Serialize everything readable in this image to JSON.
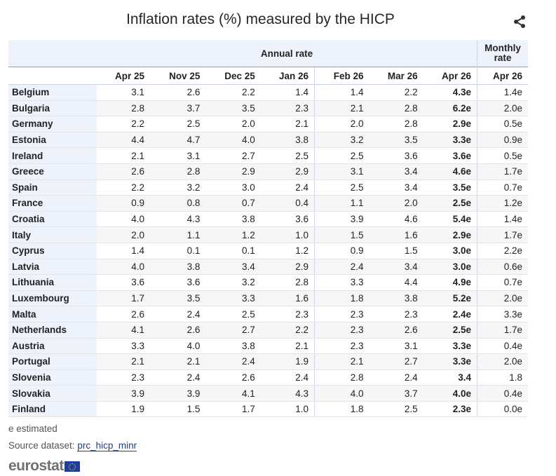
{
  "title": "Inflation rates (%) measured by the HICP",
  "share_icon": "share-icon",
  "table": {
    "group_annual": "Annual rate",
    "group_monthly": "Monthly rate",
    "columns": [
      "Apr 25",
      "Nov 25",
      "Dec 25",
      "Jan 26",
      "Feb 26",
      "Mar 26",
      "Apr 26",
      "Apr 26"
    ],
    "rows": [
      {
        "country": "Belgium",
        "values": [
          "3.1",
          "2.6",
          "2.2",
          "1.4",
          "1.4",
          "2.2",
          "4.3e",
          "1.4e"
        ]
      },
      {
        "country": "Bulgaria",
        "values": [
          "2.8",
          "3.7",
          "3.5",
          "2.3",
          "2.1",
          "2.8",
          "6.2e",
          "2.0e"
        ]
      },
      {
        "country": "Germany",
        "values": [
          "2.2",
          "2.5",
          "2.0",
          "2.1",
          "2.0",
          "2.8",
          "2.9e",
          "0.5e"
        ]
      },
      {
        "country": "Estonia",
        "values": [
          "4.4",
          "4.7",
          "4.0",
          "3.8",
          "3.2",
          "3.5",
          "3.3e",
          "0.9e"
        ]
      },
      {
        "country": "Ireland",
        "values": [
          "2.1",
          "3.1",
          "2.7",
          "2.5",
          "2.5",
          "3.6",
          "3.6e",
          "0.5e"
        ]
      },
      {
        "country": "Greece",
        "values": [
          "2.6",
          "2.8",
          "2.9",
          "2.9",
          "3.1",
          "3.4",
          "4.6e",
          "1.7e"
        ]
      },
      {
        "country": "Spain",
        "values": [
          "2.2",
          "3.2",
          "3.0",
          "2.4",
          "2.5",
          "3.4",
          "3.5e",
          "0.7e"
        ]
      },
      {
        "country": "France",
        "values": [
          "0.9",
          "0.8",
          "0.7",
          "0.4",
          "1.1",
          "2.0",
          "2.5e",
          "1.2e"
        ]
      },
      {
        "country": "Croatia",
        "values": [
          "4.0",
          "4.3",
          "3.8",
          "3.6",
          "3.9",
          "4.6",
          "5.4e",
          "1.4e"
        ]
      },
      {
        "country": "Italy",
        "values": [
          "2.0",
          "1.1",
          "1.2",
          "1.0",
          "1.5",
          "1.6",
          "2.9e",
          "1.7e"
        ]
      },
      {
        "country": "Cyprus",
        "values": [
          "1.4",
          "0.1",
          "0.1",
          "1.2",
          "0.9",
          "1.5",
          "3.0e",
          "2.2e"
        ]
      },
      {
        "country": "Latvia",
        "values": [
          "4.0",
          "3.8",
          "3.4",
          "2.9",
          "2.4",
          "3.4",
          "3.0e",
          "0.6e"
        ]
      },
      {
        "country": "Lithuania",
        "values": [
          "3.6",
          "3.6",
          "3.2",
          "2.8",
          "3.3",
          "4.4",
          "4.9e",
          "0.7e"
        ]
      },
      {
        "country": "Luxembourg",
        "values": [
          "1.7",
          "3.5",
          "3.3",
          "1.6",
          "1.8",
          "3.8",
          "5.2e",
          "2.0e"
        ]
      },
      {
        "country": "Malta",
        "values": [
          "2.6",
          "2.4",
          "2.5",
          "2.3",
          "2.3",
          "2.3",
          "2.4e",
          "3.3e"
        ]
      },
      {
        "country": "Netherlands",
        "values": [
          "4.1",
          "2.6",
          "2.7",
          "2.2",
          "2.3",
          "2.6",
          "2.5e",
          "1.7e"
        ]
      },
      {
        "country": "Austria",
        "values": [
          "3.3",
          "4.0",
          "3.8",
          "2.1",
          "2.3",
          "3.1",
          "3.3e",
          "0.4e"
        ]
      },
      {
        "country": "Portugal",
        "values": [
          "2.1",
          "2.1",
          "2.4",
          "1.9",
          "2.1",
          "2.7",
          "3.3e",
          "2.0e"
        ]
      },
      {
        "country": "Slovenia",
        "values": [
          "2.3",
          "2.4",
          "2.6",
          "2.4",
          "2.8",
          "2.4",
          "3.4",
          "1.8"
        ]
      },
      {
        "country": "Slovakia",
        "values": [
          "3.9",
          "3.9",
          "4.1",
          "4.3",
          "4.0",
          "3.7",
          "4.0e",
          "0.4e"
        ]
      },
      {
        "country": "Finland",
        "values": [
          "1.9",
          "1.5",
          "1.7",
          "1.0",
          "1.8",
          "2.5",
          "2.3e",
          "0.0e"
        ]
      }
    ]
  },
  "footer": {
    "note": "e estimated",
    "source_label": "Source dataset:",
    "source_link": "prc_hicp_minr",
    "logo": "eurostat"
  }
}
